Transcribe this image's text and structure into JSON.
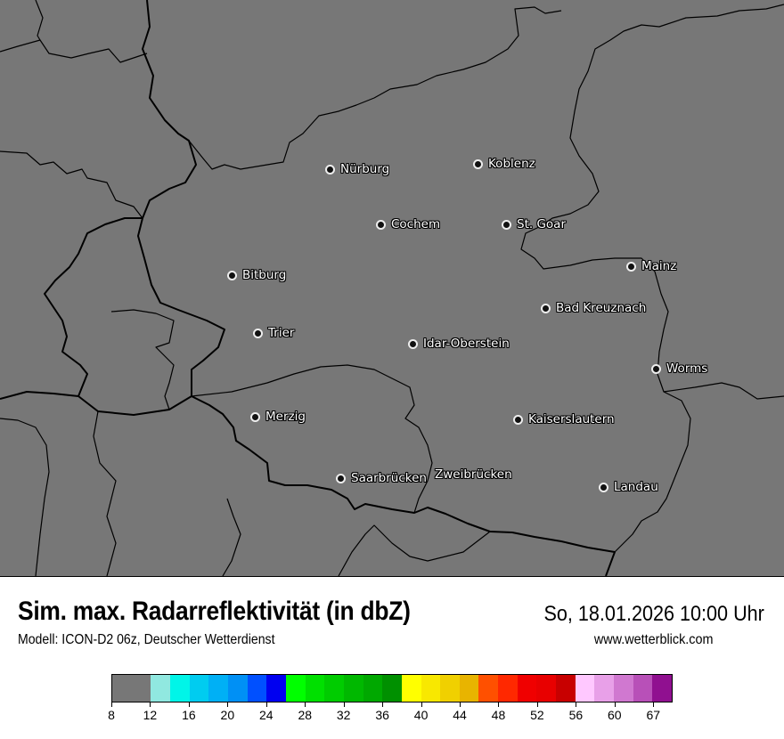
{
  "header": {
    "title": "Sim. max. Radarreflektivität (in dbZ)",
    "datetime": "So, 18.01.2026 10:00 Uhr",
    "model": "Modell: ICON-D2 06z, Deutscher Wetterdienst",
    "website": "www.wetterblick.com"
  },
  "map": {
    "background_color": "#777777",
    "cities": [
      {
        "name": "Nürburg"
      },
      {
        "name": "Koblenz"
      },
      {
        "name": "Cochem"
      },
      {
        "name": "St. Goar"
      },
      {
        "name": "Bitburg"
      },
      {
        "name": "Mainz"
      },
      {
        "name": "Bad Kreuznach"
      },
      {
        "name": "Trier"
      },
      {
        "name": "Idar-Oberstein"
      },
      {
        "name": "Worms"
      },
      {
        "name": "Merzig"
      },
      {
        "name": "Kaiserslautern"
      },
      {
        "name": "Saarbrücken"
      },
      {
        "name": "Zweibrücken"
      },
      {
        "name": "Landau"
      }
    ]
  },
  "legend": {
    "unit": "dbZ",
    "colors": [
      "#777777",
      "#90e8e0",
      "#00f5e8",
      "#00ccf0",
      "#00b0f5",
      "#0090f5",
      "#0050ff",
      "#0000f0",
      "#00ff00",
      "#00e000",
      "#00cc00",
      "#00b800",
      "#00a800",
      "#009000",
      "#ffff00",
      "#f8e800",
      "#f0d000",
      "#e8b400",
      "#ff5000",
      "#ff2800",
      "#f00000",
      "#e80000",
      "#c80000",
      "#ffc8ff",
      "#e8a0e8",
      "#d078d0",
      "#b850b8",
      "#901090"
    ],
    "tick_labels": [
      "8",
      "12",
      "16",
      "20",
      "24",
      "28",
      "32",
      "36",
      "40",
      "44",
      "48",
      "52",
      "56",
      "60",
      "67"
    ]
  }
}
